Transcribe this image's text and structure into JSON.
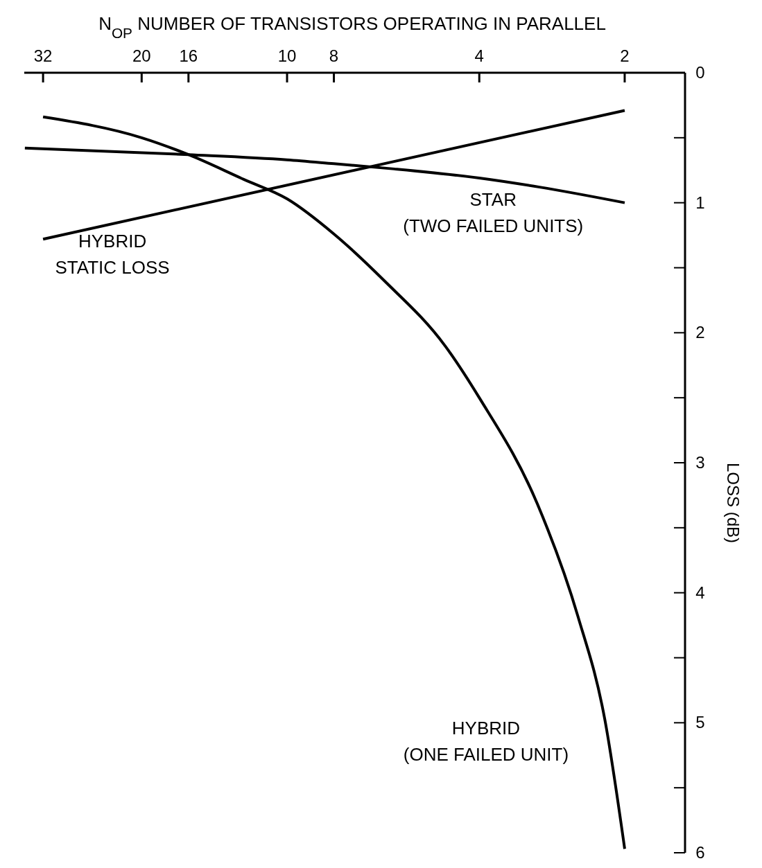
{
  "chart_data": {
    "type": "line",
    "xlabel": "N$_{OP}$ NUMBER OF TRANSISTORS OPERATING IN PARALLEL",
    "ylabel": "LOSS (dB)",
    "log": "x",
    "xlim": [
      35,
      1.5
    ],
    "xticks": [
      32,
      20,
      16,
      10,
      8,
      4,
      2
    ],
    "ylim": [
      6,
      0
    ],
    "yticks": [
      0,
      {
        "value": 0.5,
        "label": null
      },
      1,
      {
        "value": 1.5,
        "label": null
      },
      2,
      {
        "value": 2.5,
        "label": null
      },
      3,
      {
        "value": 3.5,
        "label": null
      },
      4,
      {
        "value": 4.5,
        "label": null
      },
      5,
      {
        "value": 5.5,
        "label": null
      },
      6
    ],
    "grid": false,
    "marker": "none",
    "line_style": "solid",
    "series": [
      {
        "name": "HYBRID\nSTATIC LOSS",
        "color": "#000000",
        "x": [
          32,
          2
        ],
        "values": [
          1.28,
          0.29
        ]
      },
      {
        "name": "STAR\n(TWO FAILED UNITS)",
        "color": "#000000",
        "x": [
          34.9,
          16,
          10,
          8,
          6,
          4,
          3,
          2
        ],
        "values": [
          0.58,
          0.63,
          0.67,
          0.7,
          0.74,
          0.81,
          0.88,
          1.0
        ]
      },
      {
        "name": "HYBRID\n(ONE FAILED UNIT)",
        "color": "#000000",
        "x": [
          32,
          20,
          16,
          12.3,
          10,
          8,
          6.29,
          4.71,
          4,
          3.03,
          2.5,
          2.2,
          2
        ],
        "values": [
          0.34,
          0.5,
          0.63,
          0.82,
          0.97,
          1.24,
          1.6,
          2.1,
          2.5,
          3.32,
          4.18,
          4.97,
          5.97
        ]
      }
    ]
  }
}
